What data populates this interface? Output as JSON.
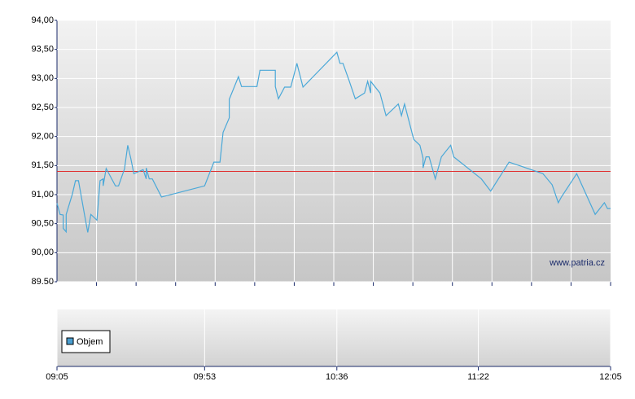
{
  "chart_data": {
    "type": "line",
    "color": "#4aa8d8",
    "x": [
      "09:05",
      "09:06",
      "09:07",
      "09:07",
      "09:08",
      "09:08",
      "09:10",
      "09:11",
      "09:12",
      "09:14",
      "09:15",
      "09:16",
      "09:18",
      "09:19",
      "09:20",
      "09:20",
      "09:21",
      "09:24",
      "09:25",
      "09:27",
      "09:27",
      "09:28",
      "09:29",
      "09:30",
      "09:33",
      "09:34",
      "09:34",
      "09:35",
      "09:36",
      "09:39",
      "09:53",
      "09:56",
      "09:58",
      "09:59",
      "10:01",
      "10:01",
      "10:04",
      "10:05",
      "10:10",
      "10:11",
      "10:16",
      "10:16",
      "10:17",
      "10:19",
      "10:21",
      "10:22",
      "10:23",
      "10:25",
      "10:36",
      "10:37",
      "10:38",
      "10:40",
      "10:42",
      "10:45",
      "10:46",
      "10:47",
      "10:47",
      "10:50",
      "10:52",
      "10:56",
      "10:57",
      "10:58",
      "11:01",
      "11:03",
      "11:04",
      "11:04",
      "11:05",
      "11:06",
      "11:08",
      "11:10",
      "11:13",
      "11:14",
      "11:23",
      "11:26",
      "11:32",
      "11:43",
      "11:46",
      "11:48",
      "11:49",
      "11:54",
      "12:00",
      "12:03",
      "12:04",
      "12:05"
    ],
    "values": [
      90.85,
      90.66,
      90.65,
      90.42,
      90.36,
      90.66,
      91.01,
      91.24,
      91.24,
      90.64,
      90.35,
      90.66,
      90.56,
      91.24,
      91.27,
      91.15,
      91.45,
      91.15,
      91.15,
      91.45,
      91.46,
      91.85,
      91.62,
      91.36,
      91.43,
      91.27,
      91.46,
      91.27,
      91.27,
      90.96,
      91.15,
      91.56,
      91.56,
      92.07,
      92.32,
      92.64,
      93.03,
      92.86,
      92.86,
      93.14,
      93.14,
      92.86,
      92.65,
      92.85,
      92.85,
      93.05,
      93.26,
      92.85,
      93.45,
      93.26,
      93.26,
      92.96,
      92.65,
      92.75,
      92.95,
      92.75,
      92.95,
      92.75,
      92.36,
      92.56,
      92.36,
      92.56,
      91.95,
      91.85,
      91.63,
      91.46,
      91.65,
      91.65,
      91.27,
      91.65,
      91.85,
      91.65,
      91.27,
      91.06,
      91.56,
      91.36,
      91.17,
      90.86,
      90.96,
      91.36,
      90.66,
      90.86,
      90.76,
      90.76
    ],
    "xlim": [
      "09:05",
      "12:05"
    ],
    "xticks": [
      "09:05",
      "09:53",
      "10:36",
      "11:22",
      "12:05"
    ],
    "ylim": [
      89.5,
      94
    ],
    "yticks": [
      {
        "value": 89.5,
        "label": "89.50"
      },
      {
        "value": 90,
        "label": "90,00"
      },
      {
        "value": 90.5,
        "label": "90,50"
      },
      {
        "value": 91,
        "label": "91,00"
      },
      {
        "value": 91.5,
        "label": "91,50"
      },
      {
        "value": 92,
        "label": "92,00"
      },
      {
        "value": 92.5,
        "label": "92,50"
      },
      {
        "value": 93,
        "label": "93,00"
      },
      {
        "value": 93.5,
        "label": "93,50"
      },
      {
        "value": 94,
        "label": "94,00"
      }
    ],
    "reference": 91.4,
    "reference_color": "#e03030",
    "grid": true,
    "watermark": "www.patria.cz",
    "legend": "Objem",
    "legend_color": "#4a9ed0"
  }
}
